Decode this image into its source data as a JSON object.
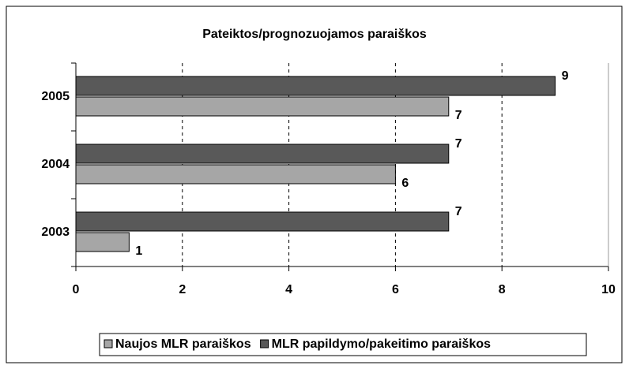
{
  "chart_data": {
    "type": "bar",
    "orientation": "horizontal",
    "title": "Pateiktos/prognozuojamos paraiškos",
    "categories": [
      "2003",
      "2004",
      "2005"
    ],
    "series": [
      {
        "name": "Naujos MLR paraiškos",
        "color": "#a6a6a6",
        "values": [
          1,
          6,
          7
        ]
      },
      {
        "name": "MLR papildymo/pakeitimo paraiškos",
        "color": "#595959",
        "values": [
          7,
          7,
          9
        ]
      }
    ],
    "xlim": [
      0,
      10
    ],
    "xticks": [
      0,
      2,
      4,
      6,
      8,
      10
    ],
    "grid": true,
    "legend": "bottom"
  }
}
